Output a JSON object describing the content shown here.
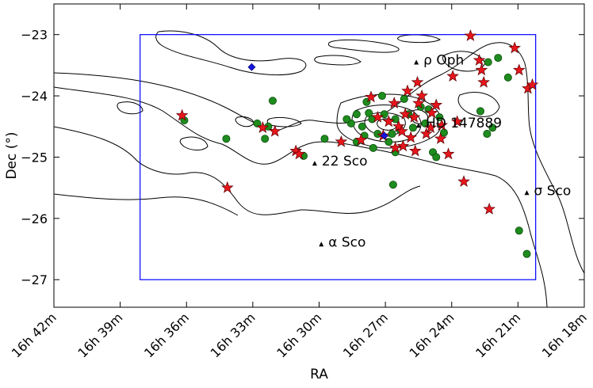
{
  "chart_data": {
    "type": "scatter",
    "xlabel": "RA",
    "ylabel": "Dec (°)",
    "x_ticks": [
      {
        "ra_min": 1002,
        "label": "16h 42m"
      },
      {
        "ra_min": 999,
        "label": "16h 39m"
      },
      {
        "ra_min": 996,
        "label": "16h 36m"
      },
      {
        "ra_min": 993,
        "label": "16h 33m"
      },
      {
        "ra_min": 990,
        "label": "16h 30m"
      },
      {
        "ra_min": 987,
        "label": "16h 27m"
      },
      {
        "ra_min": 984,
        "label": "16h 24m"
      },
      {
        "ra_min": 981,
        "label": "16h 21m"
      },
      {
        "ra_min": 978,
        "label": "16h 18m"
      }
    ],
    "y_ticks": [
      {
        "dec": -23,
        "label": "−23"
      },
      {
        "dec": -24,
        "label": "−24"
      },
      {
        "dec": -25,
        "label": "−25"
      },
      {
        "dec": -26,
        "label": "−26"
      },
      {
        "dec": -27,
        "label": "−27"
      }
    ],
    "xlim_ra_min": [
      1002,
      978
    ],
    "ylim_dec": [
      -27.45,
      -22.5
    ],
    "box": {
      "ra_min": [
        998.1,
        980.2
      ],
      "dec": [
        -27.0,
        -23.0
      ],
      "color": "#0000ff"
    },
    "annotations": [
      {
        "label": "ρ Oph",
        "ra_min": 985.6,
        "dec": -23.45
      },
      {
        "label": "HD 147889",
        "ra_min": 985.5,
        "dec": -24.48
      },
      {
        "label": "22 Sco",
        "ra_min": 990.2,
        "dec": -25.1
      },
      {
        "label": "σ Sco",
        "ra_min": 980.6,
        "dec": -25.58
      },
      {
        "label": "α Sco",
        "ra_min": 989.9,
        "dec": -26.42
      }
    ],
    "blue_diamonds": [
      {
        "ra_min": 993.05,
        "dec": -23.53
      },
      {
        "ra_min": 987.05,
        "dec": -24.65
      }
    ],
    "green_points": [
      [
        996.1,
        -24.4
      ],
      [
        994.2,
        -24.7
      ],
      [
        992.8,
        -24.45
      ],
      [
        992.45,
        -24.7
      ],
      [
        992.1,
        -24.08
      ],
      [
        992.3,
        -24.5
      ],
      [
        990.7,
        -24.98
      ],
      [
        989.75,
        -24.7
      ],
      [
        988.55,
        -24.45
      ],
      [
        988.3,
        -24.75
      ],
      [
        988.05,
        -24.5
      ],
      [
        987.85,
        -24.1
      ],
      [
        987.6,
        -24.38
      ],
      [
        987.35,
        -24.62
      ],
      [
        987.15,
        -24.0
      ],
      [
        987.05,
        -24.3
      ],
      [
        986.85,
        -24.75
      ],
      [
        986.55,
        -24.38
      ],
      [
        986.35,
        -24.55
      ],
      [
        986.15,
        -24.05
      ],
      [
        985.95,
        -24.3
      ],
      [
        985.75,
        -24.52
      ],
      [
        985.4,
        -24.18
      ],
      [
        985.2,
        -24.45
      ],
      [
        985.05,
        -24.22
      ],
      [
        984.85,
        -24.92
      ],
      [
        984.7,
        -25.0
      ],
      [
        984.55,
        -24.35
      ],
      [
        984.35,
        -24.6
      ],
      [
        988.75,
        -24.38
      ],
      [
        987.55,
        -24.85
      ],
      [
        986.7,
        -24.62
      ],
      [
        987.95,
        -24.65
      ],
      [
        986.65,
        -25.45
      ],
      [
        982.7,
        -24.25
      ],
      [
        982.4,
        -24.62
      ],
      [
        982.15,
        -24.52
      ],
      [
        981.9,
        -23.38
      ],
      [
        982.35,
        -23.45
      ],
      [
        981.45,
        -23.7
      ],
      [
        980.95,
        -26.2
      ],
      [
        980.6,
        -26.58
      ],
      [
        988.3,
        -24.3
      ],
      [
        986.55,
        -24.92
      ],
      [
        987.75,
        -24.28
      ]
    ],
    "red_stars": [
      [
        996.2,
        -24.32
      ],
      [
        994.15,
        -25.5
      ],
      [
        992.55,
        -24.52
      ],
      [
        992.0,
        -24.58
      ],
      [
        991.05,
        -24.9
      ],
      [
        989.0,
        -24.75
      ],
      [
        988.1,
        -24.72
      ],
      [
        987.65,
        -24.02
      ],
      [
        987.35,
        -24.35
      ],
      [
        987.1,
        -24.65
      ],
      [
        986.85,
        -24.42
      ],
      [
        986.6,
        -24.12
      ],
      [
        986.4,
        -24.5
      ],
      [
        986.2,
        -24.82
      ],
      [
        986.0,
        -23.92
      ],
      [
        985.85,
        -24.68
      ],
      [
        985.7,
        -24.35
      ],
      [
        985.55,
        -23.78
      ],
      [
        985.35,
        -24.0
      ],
      [
        985.15,
        -24.62
      ],
      [
        984.9,
        -24.28
      ],
      [
        984.7,
        -24.15
      ],
      [
        984.45,
        -24.48
      ],
      [
        984.15,
        -24.95
      ],
      [
        983.95,
        -23.68
      ],
      [
        983.45,
        -25.4
      ],
      [
        983.15,
        -23.02
      ],
      [
        982.75,
        -23.42
      ],
      [
        982.55,
        -23.78
      ],
      [
        982.3,
        -25.85
      ],
      [
        981.15,
        -23.22
      ],
      [
        980.95,
        -23.58
      ],
      [
        980.55,
        -23.88
      ],
      [
        980.35,
        -23.82
      ],
      [
        983.75,
        -24.42
      ],
      [
        986.25,
        -24.58
      ],
      [
        984.95,
        -24.52
      ],
      [
        986.55,
        -24.85
      ],
      [
        985.65,
        -24.9
      ],
      [
        984.5,
        -24.7
      ],
      [
        986.1,
        -24.3
      ],
      [
        982.65,
        -23.58
      ],
      [
        990.9,
        -24.95
      ],
      [
        985.5,
        -24.12
      ]
    ]
  }
}
